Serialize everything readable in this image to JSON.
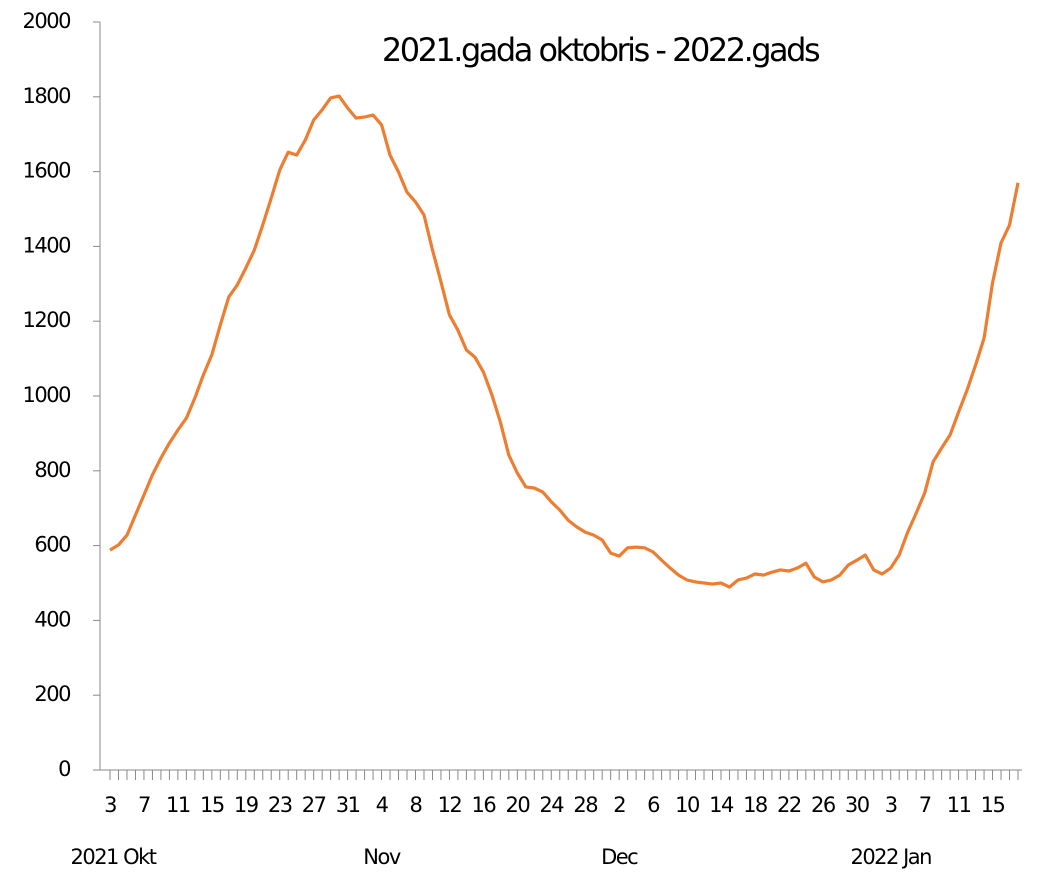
{
  "chart_data": {
    "type": "line",
    "title": "2021.gada oktobris - 2022.gads",
    "categories": [
      "3",
      null,
      null,
      null,
      "7",
      null,
      null,
      null,
      "11",
      null,
      null,
      null,
      "15",
      null,
      null,
      null,
      "19",
      null,
      null,
      null,
      "23",
      null,
      null,
      null,
      "27",
      null,
      null,
      null,
      "31",
      null,
      null,
      null,
      "4",
      null,
      null,
      null,
      "8",
      null,
      null,
      null,
      "12",
      null,
      null,
      null,
      "16",
      null,
      null,
      null,
      "20",
      null,
      null,
      null,
      "24",
      null,
      null,
      null,
      "28",
      null,
      null,
      null,
      "2",
      null,
      null,
      null,
      "6",
      null,
      null,
      null,
      "10",
      null,
      null,
      null,
      "14",
      null,
      null,
      null,
      "18",
      null,
      null,
      null,
      "22",
      null,
      null,
      null,
      "26",
      null,
      null,
      null,
      "30",
      null,
      null,
      null,
      "3",
      null,
      null,
      null,
      "7",
      null,
      null,
      null,
      "11",
      null,
      null,
      null,
      "15",
      null,
      null,
      null
    ],
    "month_labels": [
      "2021 Okt",
      null,
      null,
      null,
      null,
      null,
      null,
      null,
      null,
      null,
      null,
      null,
      null,
      null,
      null,
      null,
      null,
      null,
      null,
      null,
      null,
      null,
      null,
      null,
      null,
      null,
      null,
      null,
      null,
      null,
      null,
      null,
      "Nov",
      null,
      null,
      null,
      null,
      null,
      null,
      null,
      null,
      null,
      null,
      null,
      null,
      null,
      null,
      null,
      null,
      null,
      null,
      null,
      null,
      null,
      null,
      null,
      null,
      null,
      null,
      null,
      "Dec",
      null,
      null,
      null,
      null,
      null,
      null,
      null,
      null,
      null,
      null,
      null,
      null,
      null,
      null,
      null,
      null,
      null,
      null,
      null,
      null,
      null,
      null,
      null,
      null,
      null,
      null,
      null,
      null,
      null,
      null,
      null,
      "2022 Jan",
      null,
      null,
      null,
      null,
      null,
      null,
      null,
      null,
      null,
      null,
      null,
      null,
      null,
      null,
      null
    ],
    "series": [
      {
        "color": "#ed7d31",
        "values": [
          588,
          602,
          628,
          682,
          735,
          789,
          834,
          874,
          909,
          941,
          995,
          1056,
          1110,
          1190,
          1265,
          1297,
          1342,
          1390,
          1457,
          1529,
          1604,
          1652,
          1644,
          1684,
          1738,
          1765,
          1797,
          1802,
          1770,
          1743,
          1746,
          1751,
          1725,
          1644,
          1599,
          1545,
          1519,
          1484,
          1390,
          1305,
          1217,
          1176,
          1123,
          1104,
          1064,
          1003,
          930,
          842,
          794,
          757,
          754,
          743,
          717,
          695,
          668,
          650,
          636,
          628,
          615,
          580,
          572,
          594,
          596,
          594,
          583,
          561,
          540,
          521,
          508,
          503,
          500,
          497,
          500,
          489,
          508,
          513,
          524,
          521,
          529,
          535,
          532,
          540,
          553,
          516,
          503,
          508,
          521,
          548,
          561,
          575,
          535,
          524,
          540,
          575,
          636,
          687,
          741,
          824,
          861,
          896,
          957,
          1016,
          1083,
          1155,
          1302,
          1409,
          1457,
          1570
        ]
      }
    ],
    "ylim": [
      0,
      2000
    ],
    "yticks": [
      0,
      200,
      400,
      600,
      800,
      1000,
      1200,
      1400,
      1600,
      1800,
      2000
    ],
    "grid": false
  }
}
